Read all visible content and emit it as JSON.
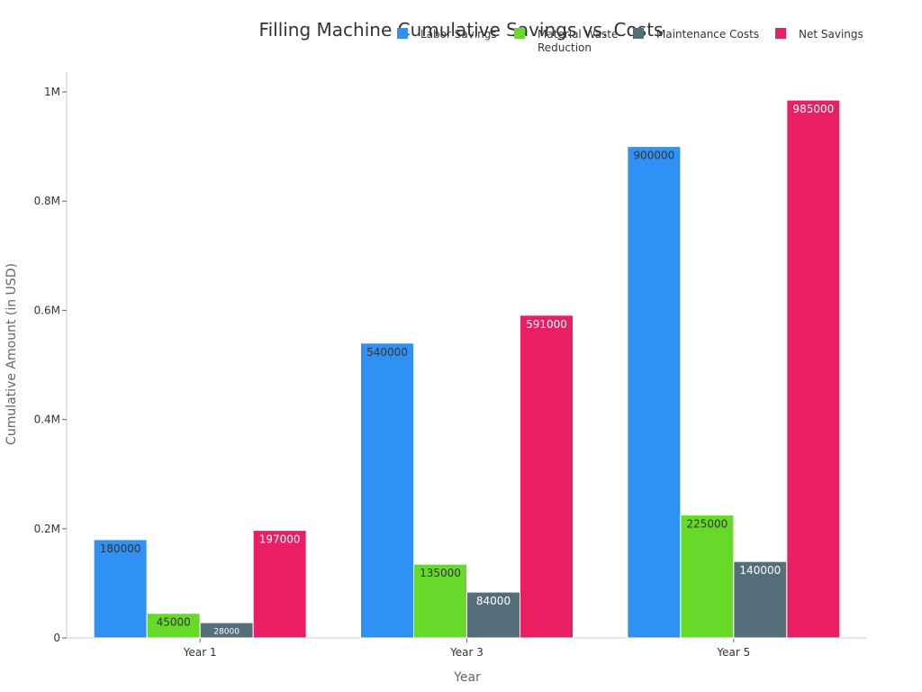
{
  "chart_data": {
    "type": "bar",
    "title": "Filling Machine Cumulative Savings vs. Costs",
    "xlabel": "Year",
    "ylabel": "Cumulative Amount (in USD)",
    "categories": [
      "Year 1",
      "Year 3",
      "Year 5"
    ],
    "ylim": [
      0,
      1000000
    ],
    "yticks": [
      {
        "value": 0,
        "label": "0"
      },
      {
        "value": 200000,
        "label": "0.2M"
      },
      {
        "value": 400000,
        "label": "0.4M"
      },
      {
        "value": 600000,
        "label": "0.6M"
      },
      {
        "value": 800000,
        "label": "0.8M"
      },
      {
        "value": 1000000,
        "label": "1M"
      }
    ],
    "grid": false,
    "legend_position": "top-right",
    "series": [
      {
        "name": "Labor Savings",
        "color": "#2f91f4",
        "label_color": "#333333",
        "values": [
          180000,
          540000,
          900000
        ]
      },
      {
        "name": "Material Waste Reduction",
        "color": "#67d928",
        "label_color": "#333333",
        "values": [
          45000,
          135000,
          225000
        ]
      },
      {
        "name": "Maintenance Costs",
        "color": "#546e7a",
        "label_color": "#ffffff",
        "values": [
          28000,
          84000,
          140000
        ]
      },
      {
        "name": "Net Savings",
        "color": "#e91e63",
        "label_color": "#ffffff",
        "values": [
          197000,
          591000,
          985000
        ]
      }
    ]
  }
}
